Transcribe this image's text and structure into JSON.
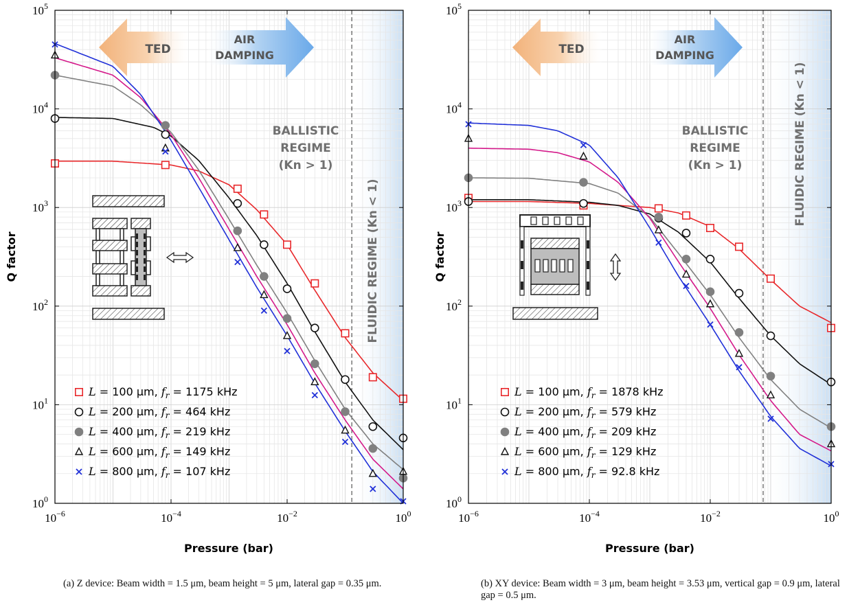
{
  "chart_data": [
    {
      "type": "scatter",
      "panel": "a",
      "xlabel": "Pressure (bar)",
      "ylabel": "Q factor",
      "xscale": "log",
      "yscale": "log",
      "xlim": [
        1e-06,
        1
      ],
      "ylim": [
        1,
        100000
      ],
      "xticks": [
        {
          "v": 1e-06,
          "b": "10",
          "e": "−6"
        },
        {
          "v": 0.0001,
          "b": "10",
          "e": "−4"
        },
        {
          "v": 0.01,
          "b": "10",
          "e": "−2"
        },
        {
          "v": 1,
          "b": "10",
          "e": "0"
        }
      ],
      "yticks": [
        {
          "v": 1,
          "b": "10",
          "e": "0"
        },
        {
          "v": 10,
          "b": "10",
          "e": "1"
        },
        {
          "v": 100,
          "b": "10",
          "e": "2"
        },
        {
          "v": 1000,
          "b": "10",
          "e": "3"
        },
        {
          "v": 10000,
          "b": "10",
          "e": "4"
        },
        {
          "v": 100000,
          "b": "10",
          "e": "5"
        }
      ],
      "grid": true,
      "legend_position": "bottom-left",
      "annotations": {
        "ted": "TED",
        "air_damping": [
          "AIR",
          "DAMPING"
        ],
        "ballistic": [
          "BALLISTIC",
          "REGIME",
          "(Kn > 1)"
        ],
        "fluidic": "FLUIDIC REGIME (Kn < 1)",
        "threshold_pressure": 0.13
      },
      "series": [
        {
          "name": "L = 100 μm, f_r = 1175 kHz",
          "legend": {
            "L": "100",
            "f": "1175"
          },
          "color": "#e8282b",
          "marker": "square",
          "x": [
            1e-06,
            8e-05,
            0.0014,
            0.004,
            0.01,
            0.03,
            0.1,
            0.3,
            1.0
          ],
          "y": [
            2800,
            2700,
            1550,
            850,
            420,
            170,
            53,
            19,
            11.5
          ],
          "fit": [
            [
              1e-06,
              2950
            ],
            [
              1e-05,
              2950
            ],
            [
              0.0001,
              2700
            ],
            [
              0.0003,
              2350
            ],
            [
              0.001,
              1700
            ],
            [
              0.003,
              950
            ],
            [
              0.01,
              420
            ],
            [
              0.03,
              145
            ],
            [
              0.1,
              48
            ],
            [
              0.3,
              21
            ],
            [
              1.0,
              11
            ]
          ]
        },
        {
          "name": "L = 200 μm, f_r = 464 kHz",
          "legend": {
            "L": "200",
            "f": "464"
          },
          "color": "#111111",
          "marker": "circle",
          "x": [
            1e-06,
            8e-05,
            0.0014,
            0.004,
            0.01,
            0.03,
            0.1,
            0.3,
            1.0
          ],
          "y": [
            8000,
            5500,
            1100,
            420,
            150,
            60,
            18,
            6,
            4.6
          ],
          "fit": [
            [
              1e-06,
              8200
            ],
            [
              1e-05,
              8000
            ],
            [
              5e-05,
              6500
            ],
            [
              0.0001,
              5300
            ],
            [
              0.0003,
              3000
            ],
            [
              0.001,
              1250
            ],
            [
              0.003,
              520
            ],
            [
              0.01,
              170
            ],
            [
              0.03,
              55
            ],
            [
              0.1,
              17
            ],
            [
              0.3,
              7
            ],
            [
              1.0,
              3.5
            ]
          ]
        },
        {
          "name": "L = 400 μm, f_r = 219 kHz",
          "legend": {
            "L": "400",
            "f": "219"
          },
          "color": "#808080",
          "marker": "circle-filled",
          "x": [
            1e-06,
            8e-05,
            0.0014,
            0.004,
            0.01,
            0.03,
            0.1,
            0.3,
            1.0
          ],
          "y": [
            22000,
            6800,
            580,
            200,
            75,
            26,
            8.5,
            3.6,
            1.8
          ],
          "fit": [
            [
              1e-06,
              22000
            ],
            [
              1e-05,
              17000
            ],
            [
              3e-05,
              11000
            ],
            [
              0.0001,
              5800
            ],
            [
              0.0003,
              2400
            ],
            [
              0.001,
              760
            ],
            [
              0.003,
              260
            ],
            [
              0.01,
              85
            ],
            [
              0.03,
              28
            ],
            [
              0.1,
              9
            ],
            [
              0.3,
              4
            ],
            [
              1.0,
              2.2
            ]
          ]
        },
        {
          "name": "L = 600 μm, f_r = 149 kHz",
          "legend": {
            "L": "600",
            "f": "149"
          },
          "color": "#111111",
          "marker": "triangle",
          "x": [
            1e-06,
            8e-05,
            0.0014,
            0.004,
            0.01,
            0.03,
            0.1,
            0.3,
            1.0
          ],
          "y": [
            35000,
            4000,
            390,
            130,
            50,
            17,
            5.5,
            2.0,
            2.1
          ],
          "fit": [
            [
              1e-06,
              33000
            ],
            [
              1e-05,
              22000
            ],
            [
              3e-05,
              13000
            ],
            [
              0.0001,
              5500
            ],
            [
              0.0003,
              2000
            ],
            [
              0.001,
              600
            ],
            [
              0.003,
              200
            ],
            [
              0.01,
              65
            ],
            [
              0.03,
              21
            ],
            [
              0.1,
              7
            ],
            [
              0.3,
              2.8
            ],
            [
              1.0,
              1.4
            ]
          ]
        },
        {
          "name": "L = 800 μm, f_r = 107 kHz",
          "legend": {
            "L": "800",
            "f": "107"
          },
          "color": "#2030d8",
          "marker": "x",
          "x": [
            1e-06,
            8e-05,
            0.0014,
            0.004,
            0.01,
            0.03,
            0.1,
            0.3,
            1.0
          ],
          "y": [
            45000,
            3700,
            280,
            90,
            35,
            12.5,
            4.2,
            1.4,
            1.05
          ],
          "fit": [
            [
              1e-06,
              46000
            ],
            [
              1e-05,
              27000
            ],
            [
              3e-05,
              14000
            ],
            [
              0.0001,
              4800
            ],
            [
              0.0003,
              1600
            ],
            [
              0.001,
              470
            ],
            [
              0.003,
              155
            ],
            [
              0.01,
              50
            ],
            [
              0.03,
              16.5
            ],
            [
              0.1,
              5.4
            ],
            [
              0.3,
              2.1
            ],
            [
              1.0,
              1.0
            ]
          ]
        }
      ]
    },
    {
      "type": "scatter",
      "panel": "b",
      "xlabel": "Pressure (bar)",
      "ylabel": "Q factor",
      "xscale": "log",
      "yscale": "log",
      "xlim": [
        1e-06,
        1
      ],
      "ylim": [
        1,
        100000
      ],
      "xticks": [
        {
          "v": 1e-06,
          "b": "10",
          "e": "−6"
        },
        {
          "v": 0.0001,
          "b": "10",
          "e": "−4"
        },
        {
          "v": 0.01,
          "b": "10",
          "e": "−2"
        },
        {
          "v": 1,
          "b": "10",
          "e": "0"
        }
      ],
      "yticks": [
        {
          "v": 1,
          "b": "10",
          "e": "0"
        },
        {
          "v": 10,
          "b": "10",
          "e": "1"
        },
        {
          "v": 100,
          "b": "10",
          "e": "2"
        },
        {
          "v": 1000,
          "b": "10",
          "e": "3"
        },
        {
          "v": 10000,
          "b": "10",
          "e": "4"
        },
        {
          "v": 100000,
          "b": "10",
          "e": "5"
        }
      ],
      "grid": true,
      "legend_position": "bottom-left",
      "annotations": {
        "ted": "TED",
        "air_damping": [
          "AIR",
          "DAMPING"
        ],
        "ballistic": [
          "BALLISTIC",
          "REGIME",
          "(Kn > 1)"
        ],
        "fluidic": "FLUIDIC REGIME (Kn < 1)",
        "threshold_pressure": 0.075
      },
      "series": [
        {
          "name": "L = 100 μm, f_r = 1878 kHz",
          "legend": {
            "L": "100",
            "f": "1878"
          },
          "color": "#e8282b",
          "marker": "square",
          "x": [
            1e-06,
            8e-05,
            0.0014,
            0.004,
            0.01,
            0.03,
            0.1,
            1.0
          ],
          "y": [
            1250,
            1050,
            980,
            830,
            620,
            400,
            190,
            60
          ],
          "fit": [
            [
              1e-06,
              1150
            ],
            [
              1e-05,
              1150
            ],
            [
              0.0001,
              1100
            ],
            [
              0.001,
              1000
            ],
            [
              0.003,
              880
            ],
            [
              0.01,
              640
            ],
            [
              0.03,
              380
            ],
            [
              0.1,
              185
            ],
            [
              0.3,
              100
            ],
            [
              1.0,
              68
            ]
          ]
        },
        {
          "name": "L = 200 μm, f_r = 579 kHz",
          "legend": {
            "L": "200",
            "f": "579"
          },
          "color": "#111111",
          "marker": "circle",
          "x": [
            1e-06,
            8e-05,
            0.0014,
            0.004,
            0.01,
            0.03,
            0.1,
            1.0
          ],
          "y": [
            1150,
            1100,
            780,
            550,
            300,
            135,
            50,
            17
          ],
          "fit": [
            [
              1e-06,
              1200
            ],
            [
              1e-05,
              1200
            ],
            [
              0.0001,
              1130
            ],
            [
              0.0003,
              1050
            ],
            [
              0.001,
              860
            ],
            [
              0.003,
              560
            ],
            [
              0.01,
              280
            ],
            [
              0.03,
              120
            ],
            [
              0.1,
              50
            ],
            [
              0.3,
              26
            ],
            [
              1.0,
              16
            ]
          ]
        },
        {
          "name": "L = 400 μm, f_r = 209 kHz",
          "legend": {
            "L": "400",
            "f": "209"
          },
          "color": "#808080",
          "marker": "circle-filled",
          "x": [
            1e-06,
            8e-05,
            0.0014,
            0.004,
            0.01,
            0.03,
            0.1,
            1.0
          ],
          "y": [
            2000,
            1800,
            800,
            300,
            140,
            54,
            19.5,
            6
          ],
          "fit": [
            [
              1e-06,
              2000
            ],
            [
              1e-05,
              1980
            ],
            [
              0.0001,
              1750
            ],
            [
              0.0003,
              1400
            ],
            [
              0.001,
              800
            ],
            [
              0.003,
              340
            ],
            [
              0.01,
              130
            ],
            [
              0.03,
              48
            ],
            [
              0.1,
              18
            ],
            [
              0.3,
              9
            ],
            [
              1.0,
              5.8
            ]
          ]
        },
        {
          "name": "L = 600 μm, f_r = 129 kHz",
          "legend": {
            "L": "600",
            "f": "129"
          },
          "color": "#111111",
          "marker": "triangle",
          "x": [
            1e-06,
            8e-05,
            0.0014,
            0.004,
            0.01,
            0.03,
            0.1,
            1.0
          ],
          "y": [
            5000,
            3300,
            590,
            210,
            105,
            33,
            12.5,
            4
          ],
          "fit": [
            [
              1e-06,
              4000
            ],
            [
              1e-05,
              3900
            ],
            [
              3e-05,
              3600
            ],
            [
              0.0001,
              2900
            ],
            [
              0.0003,
              1800
            ],
            [
              0.001,
              780
            ],
            [
              0.003,
              280
            ],
            [
              0.01,
              95
            ],
            [
              0.03,
              32
            ],
            [
              0.1,
              11
            ],
            [
              0.3,
              5
            ],
            [
              1.0,
              3.4
            ]
          ]
        },
        {
          "name": "L = 800 μm, f_r = 92.8 kHz",
          "legend": {
            "L": "800",
            "f": "92.8"
          },
          "color": "#2030d8",
          "marker": "x",
          "x": [
            1e-06,
            8e-05,
            0.0014,
            0.004,
            0.01,
            0.03,
            0.1,
            1.0
          ],
          "y": [
            7000,
            4300,
            440,
            160,
            65,
            24,
            7.2,
            2.5
          ],
          "fit": [
            [
              1e-06,
              7200
            ],
            [
              1e-05,
              6800
            ],
            [
              3e-05,
              6000
            ],
            [
              0.0001,
              4300
            ],
            [
              0.0003,
              2000
            ],
            [
              0.001,
              620
            ],
            [
              0.003,
              200
            ],
            [
              0.01,
              65
            ],
            [
              0.03,
              22
            ],
            [
              0.1,
              7.6
            ],
            [
              0.3,
              3.6
            ],
            [
              1.0,
              2.4
            ]
          ]
        }
      ]
    }
  ],
  "captions": {
    "a": "(a) Z device: Beam width = 1.5 μm, beam height = 5 μm, lateral gap = 0.35 μm.",
    "b": "(b) XY device: Beam width = 3 μm, beam height = 3.53 μm, vertical gap = 0.9 μm, lateral gap = 0.5 μm."
  }
}
